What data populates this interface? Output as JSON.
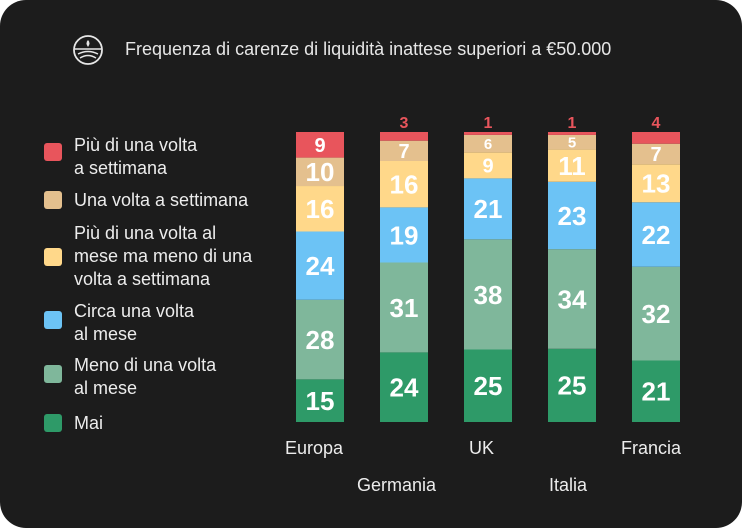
{
  "title": "Frequenza di carenze di liquidità inattese superiori a €50.000",
  "logo_icon": "wheat-field-icon",
  "chart_data": {
    "type": "bar",
    "stacked": true,
    "normalized_percent": true,
    "title": "Frequenza di carenze di liquidità inattese superiori a €50.000",
    "categories": [
      "Europa",
      "Germania",
      "UK",
      "Italia",
      "Francia"
    ],
    "series": [
      {
        "name": "Mai",
        "label": "Mai",
        "color": "#2e9a68",
        "values": [
          15,
          24,
          25,
          25,
          21
        ]
      },
      {
        "name": "Meno di una volta al mese",
        "label": "Meno di una volta\nal mese",
        "color": "#7fb79b",
        "values": [
          28,
          31,
          38,
          34,
          32
        ]
      },
      {
        "name": "Circa una volta al mese",
        "label": "Circa una volta\nal mese",
        "color": "#6cc3f5",
        "values": [
          24,
          19,
          21,
          23,
          22
        ]
      },
      {
        "name": "Più di una volta al mese ma meno di una volta a settimana",
        "label": "Più di una volta al\nmese ma meno di una\nvolta a settimana",
        "color": "#ffd88a",
        "values": [
          16,
          16,
          9,
          11,
          13
        ]
      },
      {
        "name": "Una volta a settimana",
        "label": "Una volta a settimana",
        "color": "#e4c08e",
        "values": [
          10,
          7,
          6,
          5,
          7
        ]
      },
      {
        "name": "Più di una volta a settimana",
        "label": "Più di una volta\na settimana",
        "color": "#e8555c",
        "values": [
          9,
          3,
          1,
          1,
          4
        ]
      }
    ],
    "legend_order": [
      5,
      4,
      3,
      2,
      1,
      0
    ],
    "legend_position": "left",
    "label_colors": {
      "inside": "#ffffff",
      "outside": "#e8555c"
    },
    "grid": false
  }
}
